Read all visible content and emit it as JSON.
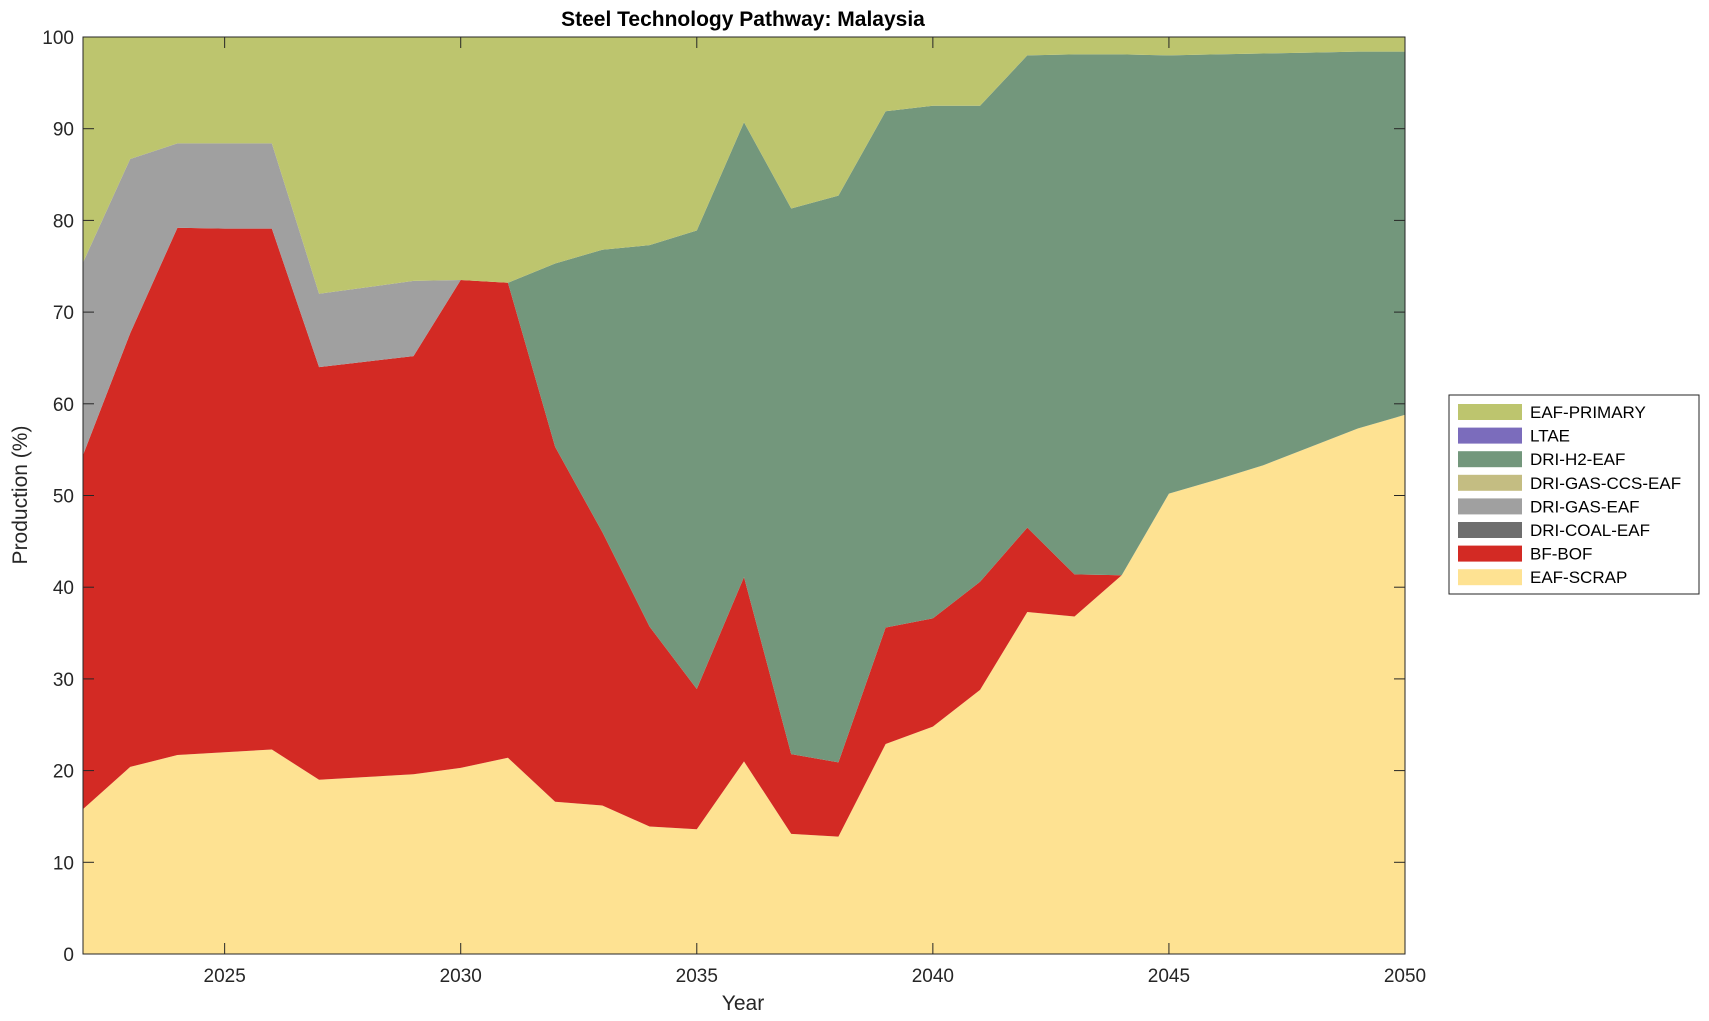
{
  "chart_data": {
    "type": "area",
    "stacked": true,
    "title": "Steel Technology Pathway: Malaysia",
    "xlabel": "Year",
    "ylabel": "Production (%)",
    "xlim": [
      2022,
      2050
    ],
    "ylim": [
      0,
      100
    ],
    "xticks": [
      2025,
      2030,
      2035,
      2040,
      2045,
      2050
    ],
    "yticks": [
      0,
      10,
      20,
      30,
      40,
      50,
      60,
      70,
      80,
      90,
      100
    ],
    "legend_position": "right",
    "x": [
      2022,
      2023,
      2024,
      2025,
      2026,
      2027,
      2028,
      2029,
      2030,
      2031,
      2032,
      2033,
      2034,
      2035,
      2036,
      2037,
      2038,
      2039,
      2040,
      2041,
      2042,
      2043,
      2044,
      2045,
      2046,
      2047,
      2048,
      2049,
      2050
    ],
    "series": [
      {
        "name": "EAF-SCRAP",
        "color": "#fee292",
        "values": [
          15.8,
          20.4,
          21.7,
          22.0,
          22.3,
          19.0,
          19.3,
          19.6,
          20.3,
          21.4,
          16.6,
          16.2,
          13.9,
          13.6,
          21.0,
          13.1,
          12.8,
          22.9,
          24.8,
          28.8,
          37.3,
          36.8,
          41.3,
          50.2,
          51.7,
          53.3,
          55.3,
          57.3,
          58.8
        ]
      },
      {
        "name": "BF-BOF",
        "color": "#d32a24",
        "values": [
          38.6,
          47.3,
          57.5,
          57.1,
          56.8,
          45.0,
          45.3,
          45.6,
          53.2,
          51.8,
          38.7,
          29.8,
          21.8,
          15.3,
          20.1,
          8.7,
          8.1,
          12.7,
          11.8,
          11.8,
          9.2,
          4.6,
          0.0,
          0.0,
          0.0,
          0.0,
          0.0,
          0.0,
          0.0
        ]
      },
      {
        "name": "DRI-COAL-EAF",
        "color": "#6e6e6e",
        "values": [
          0,
          0,
          0,
          0,
          0,
          0,
          0,
          0,
          0,
          0,
          0,
          0,
          0,
          0,
          0,
          0,
          0,
          0,
          0,
          0,
          0,
          0,
          0,
          0,
          0,
          0,
          0,
          0,
          0
        ]
      },
      {
        "name": "DRI-GAS-EAF",
        "color": "#a0a0a0",
        "values": [
          21.0,
          19.0,
          9.2,
          9.3,
          9.3,
          8.0,
          8.1,
          8.2,
          0.0,
          0.0,
          0.0,
          0.0,
          0.0,
          0.0,
          0.0,
          0.0,
          0.0,
          0.0,
          0.0,
          0.0,
          0.0,
          0.0,
          0.0,
          0.0,
          0.0,
          0.0,
          0.0,
          0.0,
          0.0
        ]
      },
      {
        "name": "DRI-GAS-CCS-EAF",
        "color": "#c4bd82",
        "values": [
          0,
          0,
          0,
          0,
          0,
          0,
          0,
          0,
          0,
          0,
          0,
          0,
          0,
          0,
          0,
          0,
          0,
          0,
          0,
          0,
          0,
          0,
          0,
          0,
          0,
          0,
          0,
          0,
          0
        ]
      },
      {
        "name": "DRI-H2-EAF",
        "color": "#73977c",
        "values": [
          0.0,
          0.0,
          0.0,
          0.0,
          0.0,
          0.0,
          0.0,
          0.0,
          0.0,
          0.0,
          20.0,
          30.8,
          41.6,
          50.0,
          49.6,
          59.5,
          61.8,
          56.3,
          55.9,
          51.9,
          51.5,
          56.7,
          56.8,
          47.8,
          46.4,
          44.9,
          43.0,
          41.1,
          39.6
        ]
      },
      {
        "name": "LTAE",
        "color": "#7b6cbc",
        "values": [
          0,
          0,
          0,
          0,
          0,
          0,
          0,
          0,
          0,
          0,
          0,
          0,
          0,
          0,
          0,
          0,
          0,
          0,
          0,
          0,
          0,
          0,
          0,
          0,
          0,
          0,
          0,
          0,
          0
        ]
      },
      {
        "name": "EAF-PRIMARY",
        "color": "#bdc56e",
        "values": [
          24.6,
          13.3,
          11.6,
          11.6,
          11.6,
          28.0,
          27.3,
          26.6,
          26.5,
          26.8,
          24.7,
          23.2,
          22.7,
          21.1,
          9.3,
          18.7,
          17.3,
          8.1,
          7.5,
          7.5,
          2.0,
          1.9,
          1.9,
          2.0,
          1.9,
          1.8,
          1.7,
          1.6,
          1.6
        ]
      }
    ],
    "legend_order": [
      "EAF-PRIMARY",
      "LTAE",
      "DRI-H2-EAF",
      "DRI-GAS-CCS-EAF",
      "DRI-GAS-EAF",
      "DRI-COAL-EAF",
      "BF-BOF",
      "EAF-SCRAP"
    ]
  }
}
